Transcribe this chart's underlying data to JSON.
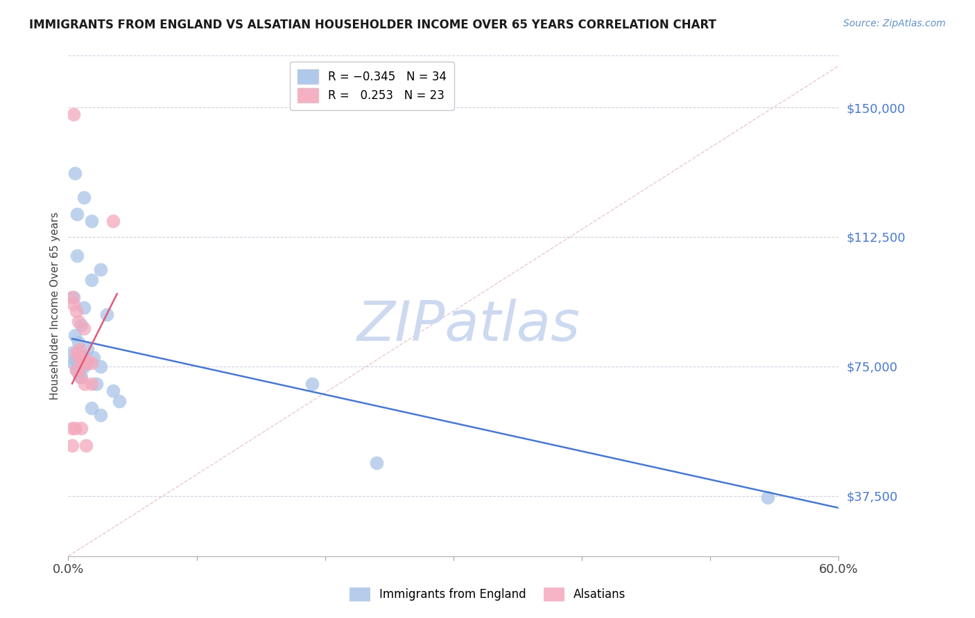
{
  "title": "IMMIGRANTS FROM ENGLAND VS ALSATIAN HOUSEHOLDER INCOME OVER 65 YEARS CORRELATION CHART",
  "source": "Source: ZipAtlas.com",
  "ylabel": "Householder Income Over 65 years",
  "xlim": [
    0.0,
    0.6
  ],
  "ylim": [
    20000,
    165000
  ],
  "yticks": [
    37500,
    75000,
    112500,
    150000
  ],
  "ytick_labels": [
    "$37,500",
    "$75,000",
    "$112,500",
    "$150,000"
  ],
  "watermark": "ZIPatlas",
  "watermark_color": "#ccd9f0",
  "england_color": "#a8c4e8",
  "alsatian_color": "#f4a8bc",
  "england_line_color": "#4878d0",
  "alsatian_line_color": "#e05878",
  "diagonal_color": "#e8c8d0",
  "bg_color": "#ffffff",
  "grid_color": "#d0d0e0",
  "title_color": "#1a1a1a",
  "axis_label_color": "#404040",
  "tick_color_y": "#4878d0",
  "tick_color_x": "#404040",
  "england_points": [
    [
      0.005,
      131000
    ],
    [
      0.012,
      124000
    ],
    [
      0.007,
      119000
    ],
    [
      0.018,
      117000
    ],
    [
      0.007,
      107000
    ],
    [
      0.025,
      103000
    ],
    [
      0.018,
      100000
    ],
    [
      0.004,
      95000
    ],
    [
      0.012,
      92000
    ],
    [
      0.03,
      90000
    ],
    [
      0.01,
      87000
    ],
    [
      0.005,
      84000
    ],
    [
      0.008,
      82000
    ],
    [
      0.015,
      80000
    ],
    [
      0.003,
      79000
    ],
    [
      0.01,
      78000
    ],
    [
      0.02,
      77500
    ],
    [
      0.005,
      77000
    ],
    [
      0.007,
      76500
    ],
    [
      0.004,
      76000
    ],
    [
      0.015,
      76000
    ],
    [
      0.012,
      75000
    ],
    [
      0.025,
      75000
    ],
    [
      0.006,
      74000
    ],
    [
      0.008,
      73000
    ],
    [
      0.01,
      72000
    ],
    [
      0.022,
      70000
    ],
    [
      0.035,
      68000
    ],
    [
      0.04,
      65000
    ],
    [
      0.018,
      63000
    ],
    [
      0.025,
      61000
    ],
    [
      0.19,
      70000
    ],
    [
      0.24,
      47000
    ],
    [
      0.545,
      37000
    ]
  ],
  "alsatian_points": [
    [
      0.004,
      148000
    ],
    [
      0.003,
      95000
    ],
    [
      0.004,
      93000
    ],
    [
      0.006,
      91000
    ],
    [
      0.008,
      88000
    ],
    [
      0.012,
      86000
    ],
    [
      0.009,
      80000
    ],
    [
      0.035,
      117000
    ],
    [
      0.006,
      79000
    ],
    [
      0.008,
      77500
    ],
    [
      0.011,
      77000
    ],
    [
      0.015,
      76500
    ],
    [
      0.018,
      76000
    ],
    [
      0.012,
      75500
    ],
    [
      0.006,
      74000
    ],
    [
      0.009,
      72000
    ],
    [
      0.013,
      70000
    ],
    [
      0.018,
      70000
    ],
    [
      0.003,
      57000
    ],
    [
      0.005,
      57000
    ],
    [
      0.01,
      57000
    ],
    [
      0.003,
      52000
    ],
    [
      0.014,
      52000
    ]
  ],
  "eng_trend_x": [
    0.003,
    0.6
  ],
  "eng_trend_y": [
    83000,
    34000
  ],
  "als_trend_x": [
    0.003,
    0.038
  ],
  "als_trend_y": [
    70000,
    96000
  ]
}
